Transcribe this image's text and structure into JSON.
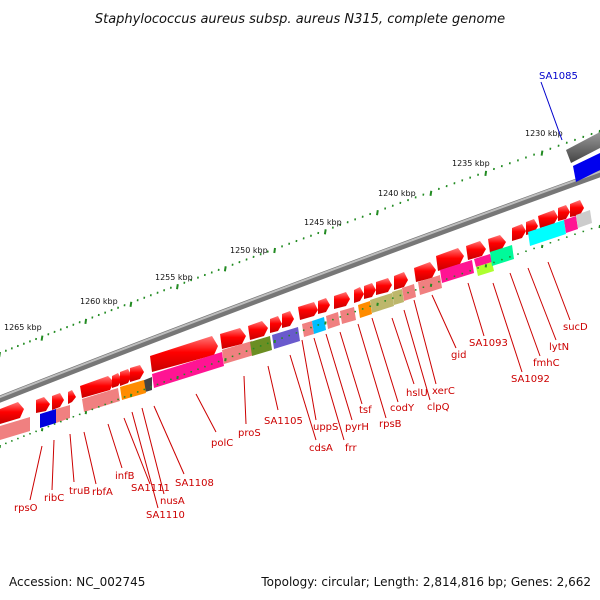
{
  "title": "Staphylococcus aureus subsp. aureus N315, complete genome",
  "footer": {
    "accession": "Accession: NC_002745",
    "summary": "Topology: circular; Length: 2,814,816 bp; Genes: 2,662"
  },
  "colors": {
    "forward_gene": "#ff0000",
    "gene_label": "#cc0000",
    "highlight_label": "#0000cc",
    "tick": "#228b22"
  },
  "scale_labels": [
    "1230 kbp",
    "1235 kbp",
    "1240 kbp",
    "1245 kbp",
    "1250 kbp",
    "1255 kbp",
    "1260 kbp",
    "1265 kbp"
  ],
  "gene_labels": [
    {
      "id": "sa1085",
      "text": "SA1085"
    },
    {
      "id": "sucd",
      "text": "sucD"
    },
    {
      "id": "lytn",
      "text": "lytN"
    },
    {
      "id": "fmhc",
      "text": "fmhC"
    },
    {
      "id": "sa1092",
      "text": "SA1092"
    },
    {
      "id": "sa1093",
      "text": "SA1093"
    },
    {
      "id": "gid",
      "text": "gid"
    },
    {
      "id": "xerc",
      "text": "xerC"
    },
    {
      "id": "hslu",
      "text": "hslU"
    },
    {
      "id": "clpq",
      "text": "clpQ"
    },
    {
      "id": "cody",
      "text": "codY"
    },
    {
      "id": "rpsb",
      "text": "rpsB"
    },
    {
      "id": "tsf",
      "text": "tsf"
    },
    {
      "id": "pyrh",
      "text": "pyrH"
    },
    {
      "id": "frr",
      "text": "frr"
    },
    {
      "id": "upps",
      "text": "uppS"
    },
    {
      "id": "cdsa",
      "text": "cdsA"
    },
    {
      "id": "sa1105",
      "text": "SA1105"
    },
    {
      "id": "pros",
      "text": "proS"
    },
    {
      "id": "polc",
      "text": "polC"
    },
    {
      "id": "sa1108",
      "text": "SA1108"
    },
    {
      "id": "nusa",
      "text": "nusA"
    },
    {
      "id": "sa1110",
      "text": "SA1110"
    },
    {
      "id": "sa1111",
      "text": "SA1111"
    },
    {
      "id": "infb",
      "text": "infB"
    },
    {
      "id": "rbfa",
      "text": "rbfA"
    },
    {
      "id": "trub",
      "text": "truB"
    },
    {
      "id": "ribc",
      "text": "ribC"
    },
    {
      "id": "rpso",
      "text": "rpsO"
    }
  ]
}
